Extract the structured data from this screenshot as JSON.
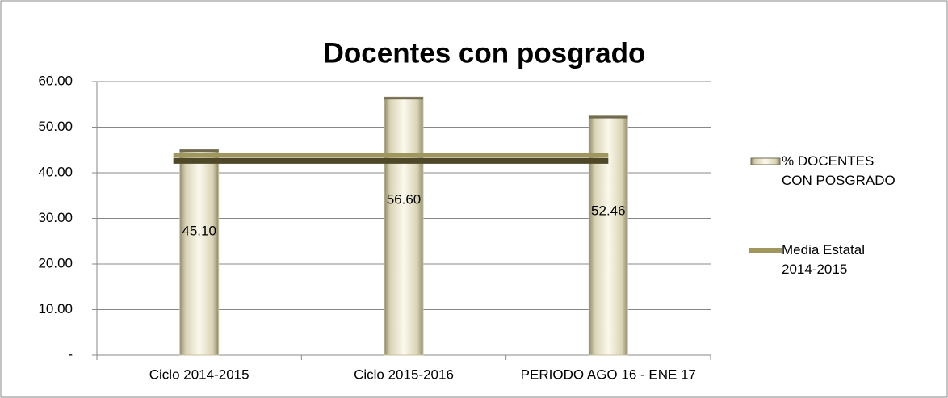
{
  "chart_data": {
    "type": "bar_line",
    "title": "Docentes con posgrado",
    "categories": [
      "Ciclo 2014-2015",
      "Ciclo 2015-2016",
      "PERIODO AGO 16 - ENE 17"
    ],
    "series": [
      {
        "name": "% DOCENTES CON POSGRADO",
        "type": "bar",
        "color": "#e8e2c4",
        "values": [
          45.1,
          56.6,
          52.46
        ],
        "value_labels": [
          "45.10",
          "56.60",
          "52.46"
        ]
      },
      {
        "name": "Media Estatal 2014-2015",
        "type": "line",
        "color": "#7d7447",
        "values": [
          43.3,
          43.3,
          43.3
        ]
      }
    ],
    "ylim": [
      0,
      60
    ],
    "yticks": [
      {
        "value": 0,
        "label": "-"
      },
      {
        "value": 10,
        "label": "10.00"
      },
      {
        "value": 20,
        "label": "20.00"
      },
      {
        "value": 30,
        "label": "30.00"
      },
      {
        "value": 40,
        "label": "40.00"
      },
      {
        "value": 50,
        "label": "50.00"
      },
      {
        "value": 60,
        "label": "60.00"
      }
    ],
    "grid": true,
    "legend": "right"
  }
}
